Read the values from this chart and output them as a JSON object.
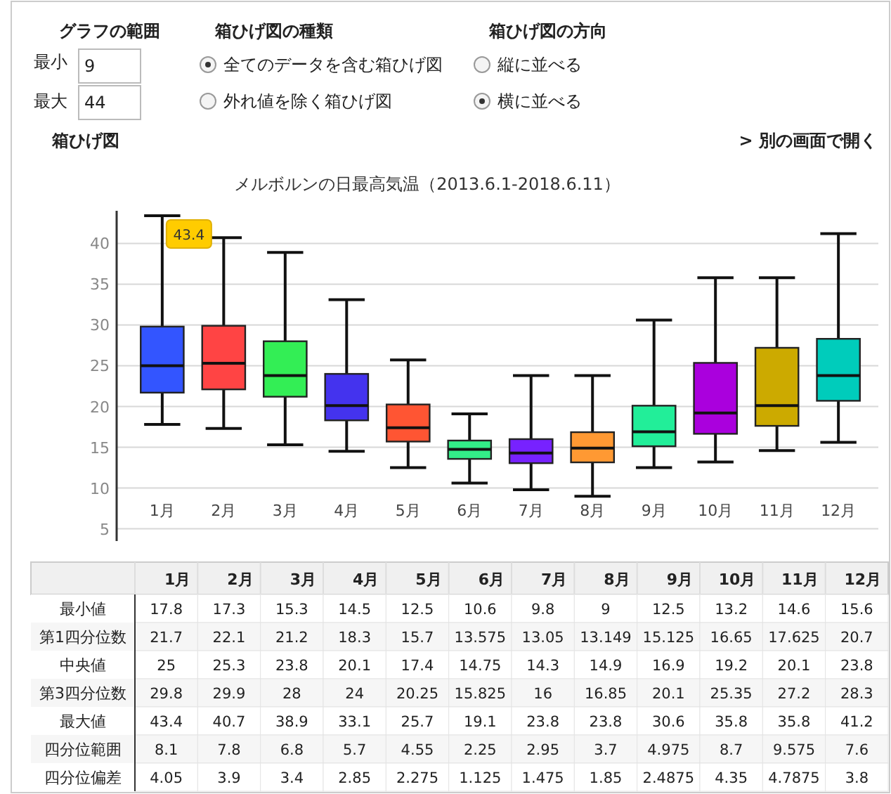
{
  "chart_data": [
    {
      "type": "other",
      "annotations": [
        "グラフの範囲",
        "最小",
        "9",
        "最大",
        "44",
        "箱ひげ図の種類",
        "全てのデータを含む箱ひげ図",
        "外れ値を除く箱ひげ図",
        "箱ひげ図の方向",
        "縦に並べる",
        "横に並べる",
        "箱ひげ図",
        "> 別の画面で開く"
      ]
    },
    {
      "type": "box",
      "title": "メルボルンの日最高気温（2013.6.1-2018.6.11）",
      "categories": [
        "1月",
        "2月",
        "3月",
        "4月",
        "5月",
        "6月",
        "7月",
        "8月",
        "9月",
        "10月",
        "11月",
        "12月"
      ],
      "colors": [
        "#3355ff",
        "#ff4444",
        "#33ee55",
        "#4433ee",
        "#ff5533",
        "#33ee88",
        "#7722ff",
        "#ff9933",
        "#22ee99",
        "#aa00dd",
        "#ccaa00",
        "#00ccbb"
      ],
      "boxes": [
        {
          "low": 17.8,
          "q1": 21.7,
          "median": 25,
          "q3": 29.8,
          "high": 43.4
        },
        {
          "low": 17.3,
          "q1": 22.1,
          "median": 25.3,
          "q3": 29.9,
          "high": 40.7
        },
        {
          "low": 15.3,
          "q1": 21.2,
          "median": 23.8,
          "q3": 28,
          "high": 38.9
        },
        {
          "low": 14.5,
          "q1": 18.3,
          "median": 20.1,
          "q3": 24,
          "high": 33.1
        },
        {
          "low": 12.5,
          "q1": 15.7,
          "median": 17.4,
          "q3": 20.25,
          "high": 25.7
        },
        {
          "low": 10.6,
          "q1": 13.575,
          "median": 14.75,
          "q3": 15.825,
          "high": 19.1
        },
        {
          "low": 9.8,
          "q1": 13.05,
          "median": 14.3,
          "q3": 16,
          "high": 23.8
        },
        {
          "low": 9,
          "q1": 13.149,
          "median": 14.9,
          "q3": 16.85,
          "high": 23.8
        },
        {
          "low": 12.5,
          "q1": 15.125,
          "median": 16.9,
          "q3": 20.1,
          "high": 30.6
        },
        {
          "low": 13.2,
          "q1": 16.65,
          "median": 19.2,
          "q3": 25.35,
          "high": 35.8
        },
        {
          "low": 14.6,
          "q1": 17.625,
          "median": 20.1,
          "q3": 27.2,
          "high": 35.8
        },
        {
          "low": 15.6,
          "q1": 20.7,
          "median": 23.8,
          "q3": 28.3,
          "high": 41.2
        }
      ],
      "ylim": [
        3.5,
        44
      ],
      "yticks": [
        5,
        10,
        15,
        20,
        25,
        30,
        35,
        40
      ],
      "grid": "y",
      "annotations": [
        {
          "text": "43.4",
          "x": "1月",
          "y": 43.4
        }
      ]
    },
    {
      "type": "heatmap",
      "data_labels": true,
      "categories": [
        "1月",
        "2月",
        "3月",
        "4月",
        "5月",
        "6月",
        "7月",
        "8月",
        "9月",
        "10月",
        "11月",
        "12月"
      ],
      "y_categories": [
        "最小値",
        "第1四分位数",
        "中央値",
        "第3四分位数",
        "最大値",
        "四分位範囲",
        "四分位偏差"
      ],
      "cells": [
        [
          17.8,
          17.3,
          15.3,
          14.5,
          12.5,
          10.6,
          9.8,
          9,
          12.5,
          13.2,
          14.6,
          15.6
        ],
        [
          21.7,
          22.1,
          21.2,
          18.3,
          15.7,
          13.575,
          13.05,
          13.149,
          15.125,
          16.65,
          17.625,
          20.7
        ],
        [
          25,
          25.3,
          23.8,
          20.1,
          17.4,
          14.75,
          14.3,
          14.9,
          16.9,
          19.2,
          20.1,
          23.8
        ],
        [
          29.8,
          29.9,
          28,
          24,
          20.25,
          15.825,
          16,
          16.85,
          20.1,
          25.35,
          27.2,
          28.3
        ],
        [
          43.4,
          40.7,
          38.9,
          33.1,
          25.7,
          19.1,
          23.8,
          23.8,
          30.6,
          35.8,
          35.8,
          41.2
        ],
        [
          8.1,
          7.8,
          6.8,
          5.7,
          4.55,
          2.25,
          2.95,
          3.7,
          4.975,
          8.7,
          9.575,
          7.6
        ],
        [
          4.05,
          3.9,
          3.4,
          2.85,
          2.275,
          1.125,
          1.475,
          1.85,
          2.4875,
          4.35,
          4.7875,
          3.8
        ]
      ]
    }
  ]
}
